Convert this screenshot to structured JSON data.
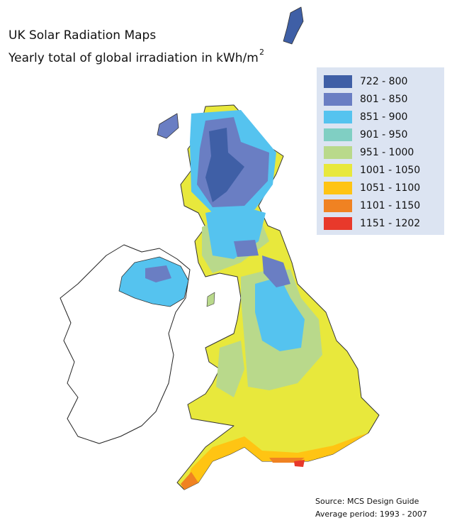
{
  "header": {
    "title": "UK Solar Radiation Maps",
    "subtitle": "Yearly total of global irradiation in kWh/m",
    "subtitle_superscript": "2"
  },
  "legend": [
    {
      "label": "722 - 800",
      "color": "#3f5fa6"
    },
    {
      "label": "801 - 850",
      "color": "#6a7ec3"
    },
    {
      "label": "851 - 900",
      "color": "#55c3ef"
    },
    {
      "label": "901 - 950",
      "color": "#80cfc3"
    },
    {
      "label": "951 - 1000",
      "color": "#b9d98b"
    },
    {
      "label": "1001 - 1050",
      "color": "#e8e83c"
    },
    {
      "label": "1051 - 1100",
      "color": "#ffc413"
    },
    {
      "label": "1101 - 1150",
      "color": "#f08222"
    },
    {
      "label": "1151 - 1202",
      "color": "#e8392b"
    }
  ],
  "source": {
    "line1": "Source: MCS Design Guide",
    "line2": "Average period: 1993 - 2007"
  }
}
